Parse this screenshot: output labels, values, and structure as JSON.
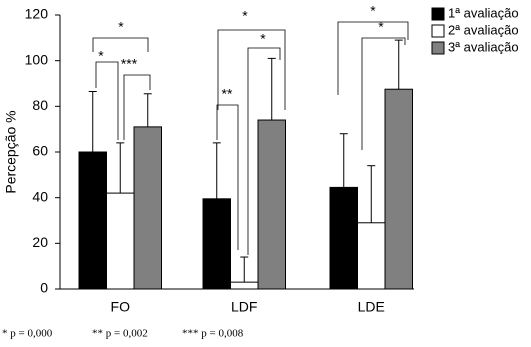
{
  "chart_data": {
    "type": "bar",
    "y_label": "Percepção %",
    "categories": [
      "FO",
      "LDF",
      "LDE"
    ],
    "series": [
      {
        "name": "1ª avaliação",
        "color": "#000000",
        "values": [
          60,
          39.5,
          44.5
        ],
        "errors": [
          26.5,
          24.5,
          23.5
        ]
      },
      {
        "name": "2ª avaliação",
        "color": "#ffffff",
        "values": [
          42,
          3,
          29
        ],
        "errors": [
          22,
          11,
          25
        ]
      },
      {
        "name": "3ª avaliação",
        "color": "#808080",
        "values": [
          71,
          74,
          87.5
        ],
        "errors": [
          14.5,
          27,
          21.5
        ]
      }
    ],
    "ylim": [
      0,
      120
    ],
    "yticks": [
      0,
      20,
      40,
      60,
      80,
      100,
      120
    ],
    "annotations": [
      "*",
      "*",
      "***",
      "*",
      "**",
      "*",
      "*",
      "*"
    ],
    "footnotes": [
      "* p = 0,000",
      "** p = 0,002",
      "*** p = 0,008"
    ]
  }
}
